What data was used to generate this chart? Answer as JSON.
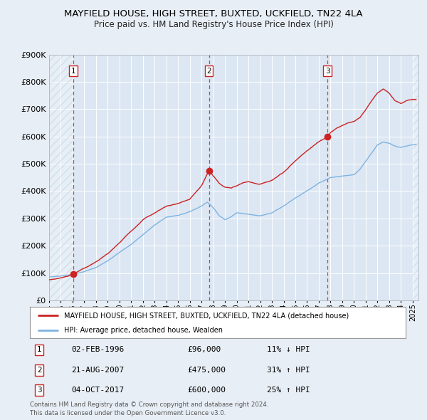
{
  "title": "MAYFIELD HOUSE, HIGH STREET, BUXTED, UCKFIELD, TN22 4LA",
  "subtitle": "Price paid vs. HM Land Registry's House Price Index (HPI)",
  "title_fontsize": 9.5,
  "subtitle_fontsize": 8.5,
  "bg_color": "#e8eef5",
  "plot_bg_color": "#dce7f3",
  "grid_color": "#ffffff",
  "hpi_line_color": "#7fb3e0",
  "price_line_color": "#cc2222",
  "sale_dot_color": "#cc2222",
  "dashed_line_color": "#cc3333",
  "sale_events": [
    {
      "label": "1",
      "date_x": 1996.08,
      "price": 96000,
      "date_str": "02-FEB-1996",
      "price_str": "£96,000",
      "hpi_rel": "11% ↓ HPI"
    },
    {
      "label": "2",
      "date_x": 2007.63,
      "price": 475000,
      "date_str": "21-AUG-2007",
      "price_str": "£475,000",
      "hpi_rel": "31% ↑ HPI"
    },
    {
      "label": "3",
      "date_x": 2017.75,
      "price": 600000,
      "date_str": "04-OCT-2017",
      "price_str": "£600,000",
      "hpi_rel": "25% ↑ HPI"
    }
  ],
  "ylim": [
    0,
    900000
  ],
  "yticks": [
    0,
    100000,
    200000,
    300000,
    400000,
    500000,
    600000,
    700000,
    800000,
    900000
  ],
  "xlim": [
    1994.0,
    2025.5
  ],
  "xticks": [
    1994,
    1995,
    1996,
    1997,
    1998,
    1999,
    2000,
    2001,
    2002,
    2003,
    2004,
    2005,
    2006,
    2007,
    2008,
    2009,
    2010,
    2011,
    2012,
    2013,
    2014,
    2015,
    2016,
    2017,
    2018,
    2019,
    2020,
    2021,
    2022,
    2023,
    2024,
    2025
  ],
  "legend_label_price": "MAYFIELD HOUSE, HIGH STREET, BUXTED, UCKFIELD, TN22 4LA (detached house)",
  "legend_label_hpi": "HPI: Average price, detached house, Wealden",
  "footer_line1": "Contains HM Land Registry data © Crown copyright and database right 2024.",
  "footer_line2": "This data is licensed under the Open Government Licence v3.0."
}
